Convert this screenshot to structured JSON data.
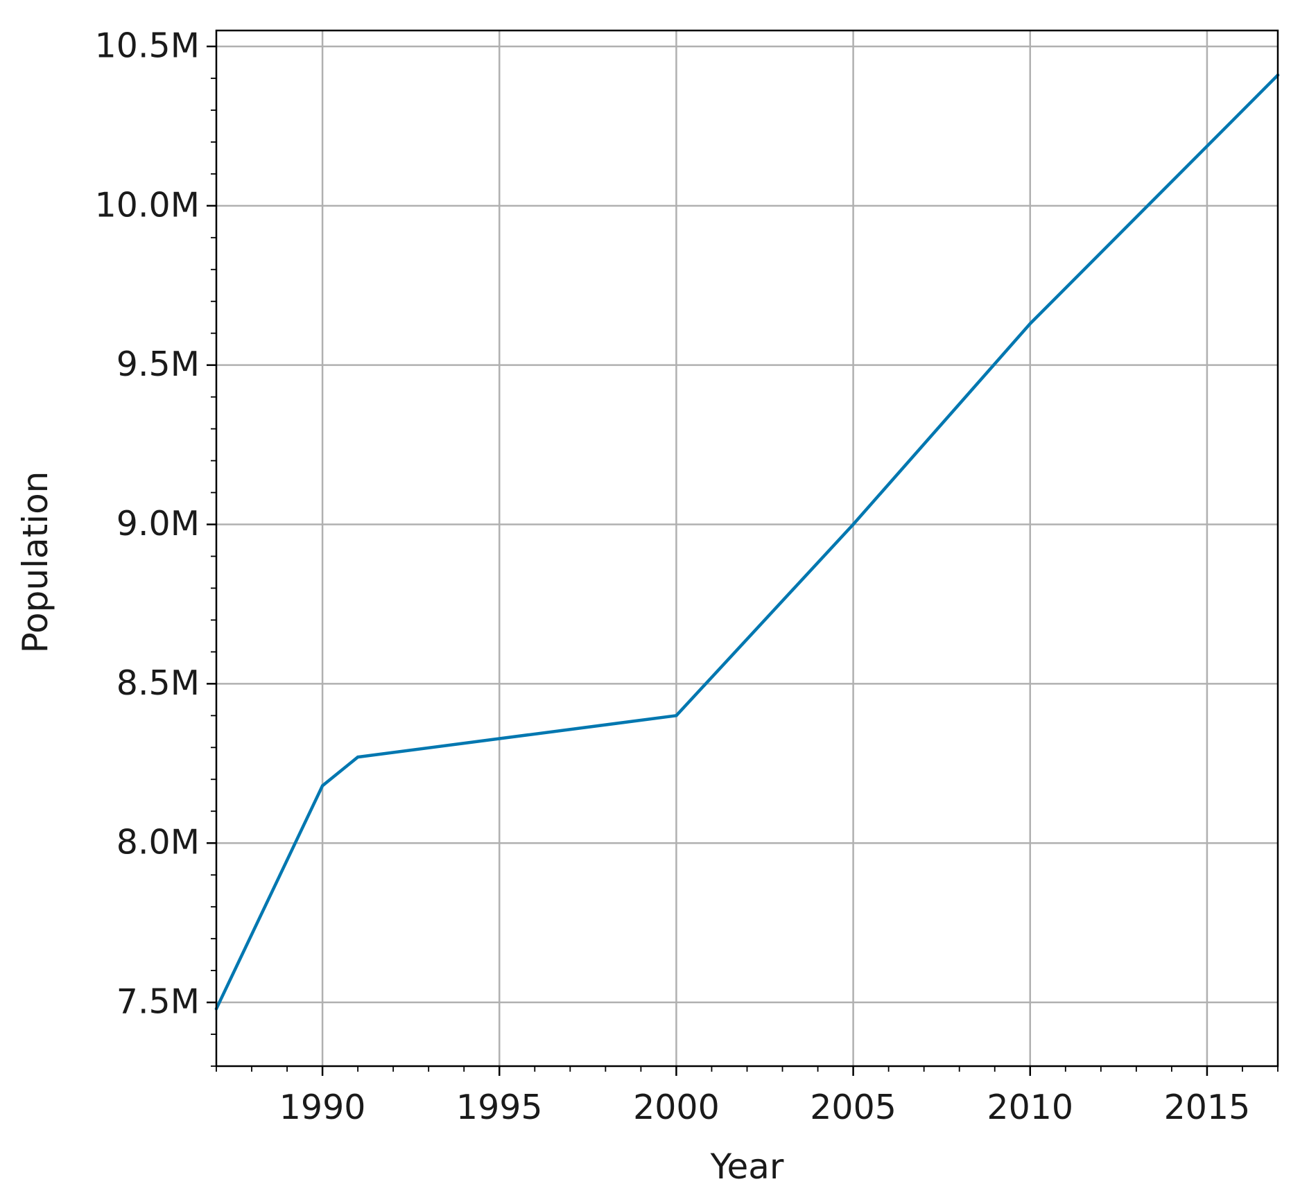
{
  "chart_data": {
    "type": "line",
    "title": "",
    "xlabel": "Year",
    "ylabel": "Population",
    "xlim": [
      1987,
      2017
    ],
    "ylim": [
      7300000,
      10550000
    ],
    "grid": true,
    "legend": "none",
    "x_ticks": [
      1990,
      1995,
      2000,
      2005,
      2010,
      2015
    ],
    "x_tick_labels": [
      "1990",
      "1995",
      "2000",
      "2005",
      "2010",
      "2015"
    ],
    "x_minor_step": 1,
    "y_ticks": [
      7500000,
      8000000,
      8500000,
      9000000,
      9500000,
      10000000,
      10500000
    ],
    "y_tick_labels": [
      "7.5M",
      "8.0M",
      "8.5M",
      "9.0M",
      "9.5M",
      "10.0M",
      "10.5M"
    ],
    "y_minor_step": 100000,
    "series": [
      {
        "color": "#0077b0",
        "x": [
          1987,
          1990,
          1991,
          2000,
          2005,
          2010,
          2017
        ],
        "y": [
          7480000,
          8180000,
          8270000,
          8400000,
          9000000,
          9630000,
          10410000
        ]
      }
    ]
  }
}
